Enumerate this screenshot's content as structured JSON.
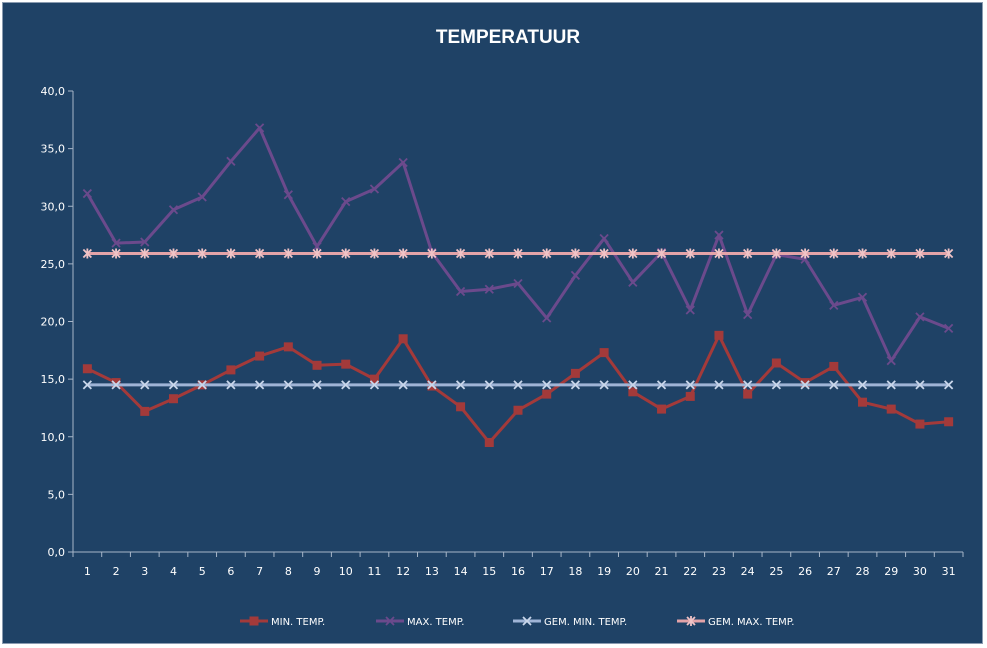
{
  "chart_data": {
    "type": "line",
    "title": "TEMPERATUUR",
    "xlabel": "",
    "ylabel": "",
    "x": [
      1,
      2,
      3,
      4,
      5,
      6,
      7,
      8,
      9,
      10,
      11,
      12,
      13,
      14,
      15,
      16,
      17,
      18,
      19,
      20,
      21,
      22,
      23,
      24,
      25,
      26,
      27,
      28,
      29,
      30,
      31
    ],
    "x_labels": [
      "1",
      "2",
      "3",
      "4",
      "5",
      "6",
      "7",
      "8",
      "9",
      "10",
      "11",
      "12",
      "13",
      "14",
      "15",
      "16",
      "17",
      "18",
      "19",
      "20",
      "21",
      "22",
      "23",
      "24",
      "25",
      "26",
      "27",
      "28",
      "29",
      "30",
      "31"
    ],
    "ylim": [
      0,
      40
    ],
    "yticks": [
      0,
      5,
      10,
      15,
      20,
      25,
      30,
      35,
      40
    ],
    "ytick_labels": [
      "0,0",
      "5,0",
      "10,0",
      "15,0",
      "20,0",
      "25,0",
      "30,0",
      "35,0",
      "40,0"
    ],
    "grid": false,
    "legend_position": "bottom",
    "series": [
      {
        "name": "MIN. TEMP.",
        "color": "#a33a3a",
        "marker": "square",
        "values": [
          15.9,
          14.7,
          12.2,
          13.3,
          14.5,
          15.8,
          17.0,
          17.8,
          16.2,
          16.3,
          15.0,
          18.5,
          14.4,
          12.6,
          9.5,
          12.3,
          13.7,
          15.5,
          17.3,
          13.9,
          12.4,
          13.5,
          18.8,
          13.7,
          16.4,
          14.7,
          16.1,
          13.0,
          12.4,
          11.1,
          11.3
        ]
      },
      {
        "name": "MAX. TEMP.",
        "color": "#6b4a8c",
        "marker": "x",
        "values": [
          31.1,
          26.8,
          26.9,
          29.7,
          30.8,
          33.9,
          36.8,
          31.0,
          26.5,
          30.4,
          31.5,
          33.8,
          26.0,
          22.6,
          22.8,
          23.3,
          20.3,
          24.0,
          27.2,
          23.4,
          26.0,
          21.0,
          27.5,
          20.6,
          25.8,
          25.4,
          21.4,
          22.1,
          16.6,
          20.4,
          19.4
        ]
      },
      {
        "name": "GEM. MIN. TEMP.",
        "color": "#9fb4d6",
        "marker": "x",
        "values": [
          14.5,
          14.5,
          14.5,
          14.5,
          14.5,
          14.5,
          14.5,
          14.5,
          14.5,
          14.5,
          14.5,
          14.5,
          14.5,
          14.5,
          14.5,
          14.5,
          14.5,
          14.5,
          14.5,
          14.5,
          14.5,
          14.5,
          14.5,
          14.5,
          14.5,
          14.5,
          14.5,
          14.5,
          14.5,
          14.5,
          14.5
        ]
      },
      {
        "name": "GEM. MAX. TEMP.",
        "color": "#e3a3a8",
        "marker": "star",
        "values": [
          25.9,
          25.9,
          25.9,
          25.9,
          25.9,
          25.9,
          25.9,
          25.9,
          25.9,
          25.9,
          25.9,
          25.9,
          25.9,
          25.9,
          25.9,
          25.9,
          25.9,
          25.9,
          25.9,
          25.9,
          25.9,
          25.9,
          25.9,
          25.9,
          25.9,
          25.9,
          25.9,
          25.9,
          25.9,
          25.9,
          25.9
        ]
      }
    ]
  }
}
